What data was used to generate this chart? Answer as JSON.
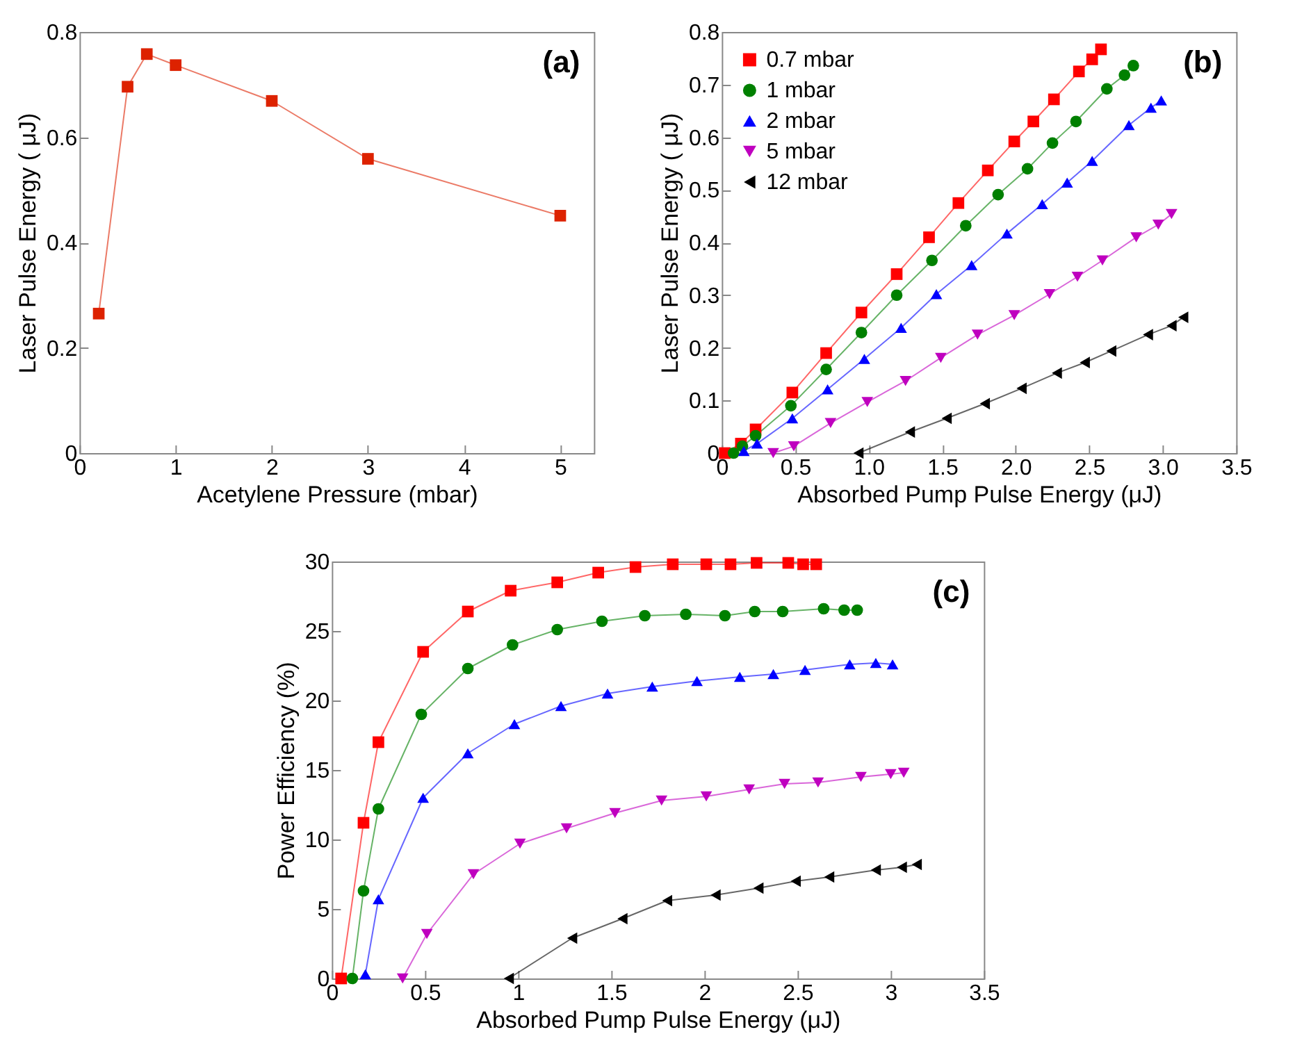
{
  "chart_data": [
    {
      "type": "line",
      "xlabel": "Acetylene Pressure (mbar)",
      "ylabel": "Laser Pulse Energy ( μJ)",
      "x": [
        0.2,
        0.5,
        0.7,
        1,
        2,
        3,
        5
      ],
      "line_style": "solid",
      "series": [
        {
          "color": "#dd2200",
          "marker": "square",
          "values": [
            0.265,
            0.696,
            0.758,
            0.737,
            0.669,
            0.559,
            0.451
          ]
        }
      ],
      "xlim": [
        0,
        5.35
      ],
      "xticks": [
        0,
        1,
        2,
        3,
        4,
        5
      ],
      "ylim": [
        0,
        0.8
      ],
      "yticks": [
        0,
        0.2,
        0.4,
        0.6,
        0.8
      ],
      "annotations": [
        "(a)"
      ]
    },
    {
      "type": "line",
      "xlabel": "Absorbed Pump Pulse Energy (μJ)",
      "ylabel": "Laser Pulse Energy ( μJ)",
      "legend": "top left",
      "line_style": "solid",
      "series": [
        {
          "name": "0.7 mbar",
          "color": "#ff0000",
          "marker": "square",
          "x": [
            0.02,
            0.13,
            0.23,
            0.48,
            0.71,
            0.95,
            1.19,
            1.41,
            1.61,
            1.81,
            1.99,
            2.12,
            2.26,
            2.43,
            2.52,
            2.58
          ],
          "values": [
            0,
            0.018,
            0.045,
            0.115,
            0.19,
            0.267,
            0.34,
            0.41,
            0.475,
            0.537,
            0.592,
            0.63,
            0.672,
            0.725,
            0.748,
            0.767
          ]
        },
        {
          "name": "1 mbar",
          "color": "#008000",
          "marker": "circle",
          "x": [
            0.08,
            0.14,
            0.23,
            0.47,
            0.71,
            0.95,
            1.19,
            1.43,
            1.66,
            1.88,
            2.08,
            2.25,
            2.41,
            2.62,
            2.74,
            2.8
          ],
          "values": [
            0,
            0.013,
            0.033,
            0.09,
            0.159,
            0.229,
            0.3,
            0.366,
            0.432,
            0.491,
            0.54,
            0.589,
            0.63,
            0.692,
            0.718,
            0.736
          ]
        },
        {
          "name": "2 mbar",
          "color": "#0000ff",
          "marker": "triangle",
          "x": [
            0.15,
            0.24,
            0.48,
            0.72,
            0.97,
            1.22,
            1.46,
            1.7,
            1.94,
            2.18,
            2.35,
            2.52,
            2.77,
            2.92,
            2.99
          ],
          "values": [
            0.004,
            0.018,
            0.066,
            0.121,
            0.179,
            0.238,
            0.302,
            0.357,
            0.417,
            0.473,
            0.514,
            0.555,
            0.623,
            0.656,
            0.67
          ]
        },
        {
          "name": "5 mbar",
          "color": "#bf00bf",
          "marker": "triangle-down",
          "x": [
            0.35,
            0.49,
            0.74,
            0.99,
            1.25,
            1.49,
            1.74,
            1.99,
            2.23,
            2.42,
            2.59,
            2.82,
            2.97,
            3.06
          ],
          "values": [
            0,
            0.013,
            0.057,
            0.097,
            0.137,
            0.181,
            0.225,
            0.262,
            0.302,
            0.335,
            0.366,
            0.41,
            0.434,
            0.454
          ]
        },
        {
          "name": "12 mbar",
          "color": "#000000",
          "marker": "triangle-left",
          "x": [
            0.93,
            1.28,
            1.53,
            1.79,
            2.04,
            2.28,
            2.47,
            2.65,
            2.9,
            3.06,
            3.14
          ],
          "values": [
            0,
            0.04,
            0.066,
            0.094,
            0.123,
            0.152,
            0.172,
            0.194,
            0.225,
            0.242,
            0.258
          ]
        }
      ],
      "xlim": [
        0,
        3.5
      ],
      "xticks": [
        0,
        0.5,
        {
          "value": 1,
          "label": "1.0"
        },
        1.5,
        {
          "value": 2,
          "label": "2.0"
        },
        2.5,
        {
          "value": 3,
          "label": "3.0"
        },
        3.5
      ],
      "ylim": [
        0,
        0.8
      ],
      "yticks": [
        0,
        0.1,
        0.2,
        0.3,
        0.4,
        0.5,
        0.6,
        0.7,
        0.8
      ],
      "annotations": [
        "(b)"
      ]
    },
    {
      "type": "line",
      "xlabel": "Absorbed Pump Pulse Energy (μJ)",
      "ylabel": "Power Efficiency (%)",
      "line_style": "solid",
      "series": [
        {
          "color": "#ff0000",
          "marker": "square",
          "x": [
            0.05,
            0.17,
            0.25,
            0.49,
            0.73,
            0.96,
            1.21,
            1.43,
            1.63,
            1.83,
            2.01,
            2.14,
            2.28,
            2.45,
            2.53,
            2.6
          ],
          "values": [
            0,
            11.2,
            17.0,
            23.5,
            26.4,
            27.9,
            28.5,
            29.2,
            29.6,
            29.8,
            29.8,
            29.8,
            29.9,
            29.9,
            29.8,
            29.8
          ]
        },
        {
          "color": "#008000",
          "marker": "circle",
          "x": [
            0.11,
            0.17,
            0.25,
            0.48,
            0.73,
            0.97,
            1.21,
            1.45,
            1.68,
            1.9,
            2.11,
            2.27,
            2.42,
            2.64,
            2.75,
            2.82
          ],
          "values": [
            0,
            6.3,
            12.2,
            19.0,
            22.3,
            24.0,
            25.1,
            25.7,
            26.1,
            26.2,
            26.1,
            26.4,
            26.4,
            26.6,
            26.5,
            26.5
          ]
        },
        {
          "color": "#0000ff",
          "marker": "triangle",
          "x": [
            0.18,
            0.25,
            0.49,
            0.73,
            0.98,
            1.23,
            1.48,
            1.72,
            1.96,
            2.19,
            2.37,
            2.54,
            2.78,
            2.92,
            3.01
          ],
          "values": [
            0.3,
            5.7,
            13.0,
            16.2,
            18.3,
            19.6,
            20.5,
            21.0,
            21.4,
            21.7,
            21.9,
            22.2,
            22.6,
            22.7,
            22.6
          ]
        },
        {
          "color": "#bf00bf",
          "marker": "triangle-down",
          "x": [
            0.38,
            0.51,
            0.76,
            1.01,
            1.26,
            1.52,
            1.77,
            2.01,
            2.24,
            2.43,
            2.61,
            2.84,
            3.0,
            3.07
          ],
          "values": [
            0,
            3.2,
            7.5,
            9.7,
            10.8,
            11.9,
            12.8,
            13.1,
            13.6,
            14.0,
            14.1,
            14.5,
            14.7,
            14.8
          ]
        },
        {
          "color": "#000000",
          "marker": "triangle-left",
          "x": [
            0.95,
            1.29,
            1.56,
            1.8,
            2.06,
            2.29,
            2.49,
            2.67,
            2.92,
            3.06,
            3.14
          ],
          "values": [
            0,
            2.9,
            4.3,
            5.6,
            6.0,
            6.5,
            7.0,
            7.3,
            7.8,
            8.0,
            8.2
          ]
        }
      ],
      "xlim": [
        0,
        3.5
      ],
      "xticks": [
        0,
        0.5,
        1,
        1.5,
        2,
        2.5,
        3,
        3.5
      ],
      "ylim": [
        0,
        30
      ],
      "yticks": [
        0,
        5,
        10,
        15,
        20,
        25,
        30
      ],
      "annotations": [
        "(c)"
      ]
    }
  ]
}
